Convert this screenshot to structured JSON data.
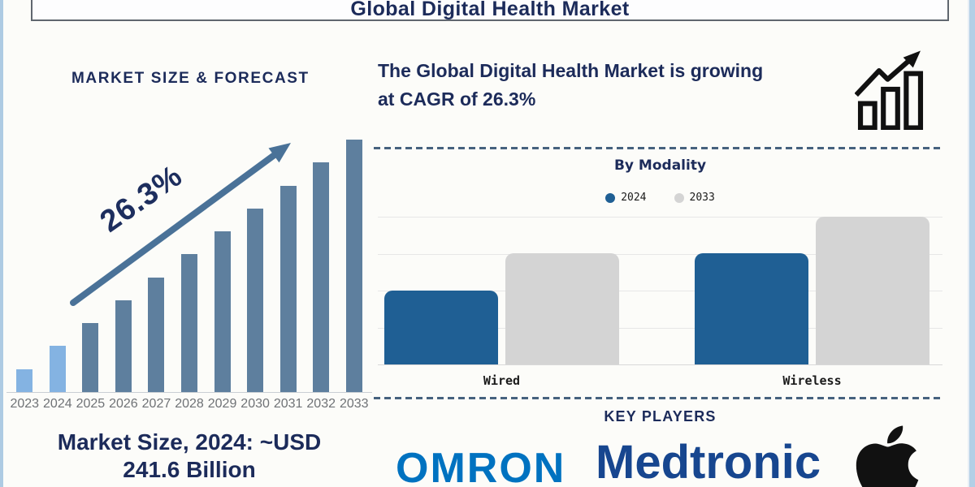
{
  "page_title": "Global Digital Health Market",
  "left_panel": {
    "section_title": "MARKET SIZE & FORECAST",
    "cagr_annotation": "26.3%",
    "caption": {
      "line1": "Market Size, 2024: ~USD",
      "line2": "241.6 Billion"
    }
  },
  "right_panel": {
    "headline": {
      "line1": "The Global Digital Health Market is growing",
      "line2": "at CAGR of 26.3%"
    },
    "growth_icon": "bar-chart-rising-arrow-icon",
    "modality_section_title": "By Modality",
    "key_players": {
      "section_title": "KEY PLAYERS",
      "players": [
        "OMRON",
        "Medtronic",
        "Apple"
      ]
    }
  },
  "chart_data": [
    {
      "type": "bar",
      "title": "MARKET SIZE & FORECAST",
      "categories": [
        "2023",
        "2024",
        "2025",
        "2026",
        "2027",
        "2028",
        "2029",
        "2030",
        "2031",
        "2032",
        "2033"
      ],
      "values": [
        1,
        2,
        3,
        4,
        5,
        6,
        7,
        8,
        9,
        10,
        11
      ],
      "ylim": [
        0,
        11
      ],
      "y_axis": "unlabeled; stylized equal-step growth bars",
      "known_point": "2024 = ~USD 241.6 Billion",
      "annotation": "26.3% CAGR trend arrow",
      "highlight_indices": [
        0,
        1
      ],
      "highlight_bar_color": "#84b3e2",
      "bar_color": "#5e7f9e",
      "grid": false,
      "legend_position": "none"
    },
    {
      "type": "bar",
      "title": "By Modality",
      "categories": [
        "Wired",
        "Wireless"
      ],
      "series": [
        {
          "name": "2024",
          "values": [
            2,
            3
          ],
          "color": "#1f5f94"
        },
        {
          "name": "2033",
          "values": [
            3,
            4
          ],
          "color": "#d4d4d4"
        }
      ],
      "ylim": [
        0,
        4
      ],
      "y_axis": "unlabeled",
      "grid": true,
      "legend_position": "top-center"
    }
  ],
  "colors": {
    "navy": "#1c2b5a",
    "steel_arrow": "#4a7298",
    "divider_dash": "#46627e",
    "frame_blue": "#aecbe3",
    "year_label_gray": "#6f7276",
    "omron_blue": "#0072c0",
    "medtronic_navy": "#17468f",
    "apple_black": "#111111"
  }
}
